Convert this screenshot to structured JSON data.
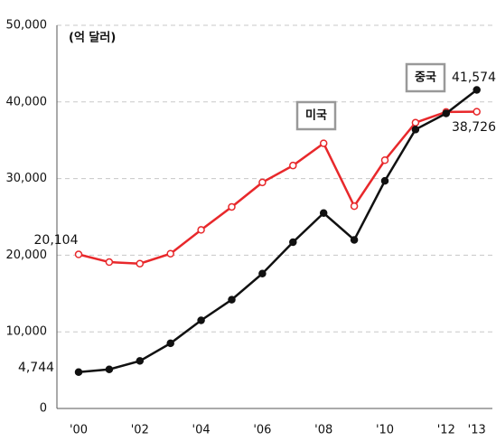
{
  "chart_data": {
    "type": "line",
    "unit_label": "(억 달러)",
    "categories": [
      "'00",
      null,
      "'02",
      null,
      "'04",
      null,
      "'06",
      null,
      "'08",
      null,
      "'10",
      null,
      "'12",
      "'13"
    ],
    "ylim": [
      0,
      50000
    ],
    "yticks": [
      0,
      {
        "value": 10000,
        "label": "10,000"
      },
      {
        "value": 20000,
        "label": "20,000"
      },
      {
        "value": 30000,
        "label": "30,000"
      },
      {
        "value": 40000,
        "label": "40,000"
      },
      {
        "value": 50000,
        "label": "50,000"
      }
    ],
    "grid": true,
    "series": [
      {
        "name": "미국",
        "color": "#e8282b",
        "values": [
          20104,
          19100,
          18900,
          20200,
          23300,
          26300,
          29500,
          31700,
          34600,
          26400,
          32400,
          37300,
          38700,
          38726
        ],
        "value_labels": [
          "20,104",
          null,
          null,
          null,
          null,
          null,
          null,
          null,
          null,
          null,
          null,
          null,
          null,
          "38,726"
        ]
      },
      {
        "name": "중국",
        "color": "#111111",
        "values": [
          4744,
          5100,
          6200,
          8500,
          11500,
          14200,
          17600,
          21700,
          25500,
          22000,
          29700,
          36400,
          38500,
          41574
        ],
        "value_labels": [
          "4,744",
          null,
          null,
          null,
          null,
          null,
          null,
          null,
          null,
          null,
          null,
          null,
          null,
          "41,574"
        ]
      }
    ]
  }
}
